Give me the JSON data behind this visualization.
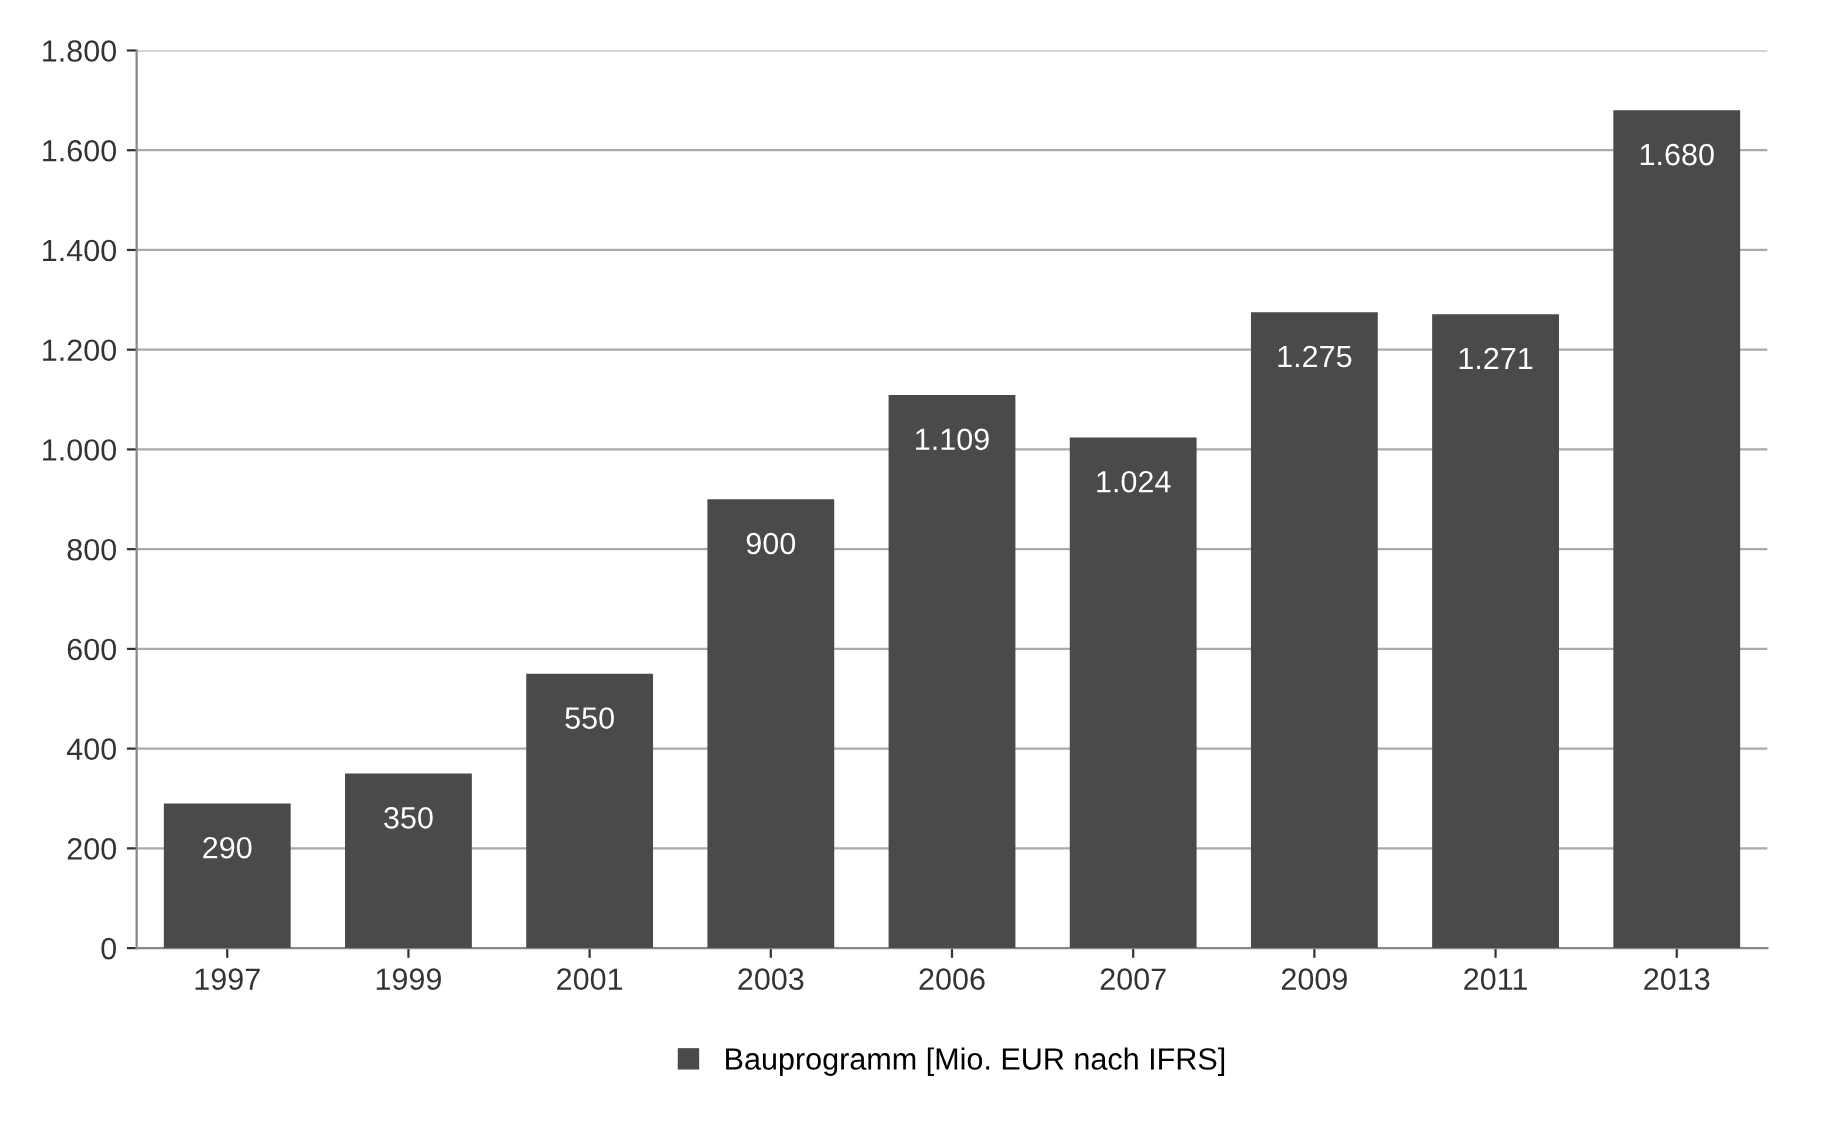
{
  "chart_data": {
    "type": "bar",
    "categories": [
      "1997",
      "1999",
      "2001",
      "2003",
      "2006",
      "2007",
      "2009",
      "2011",
      "2013"
    ],
    "series": [
      {
        "name": "Bauprogramm [Mio. EUR nach IFRS]",
        "color": "#4a4a4a",
        "values": [
          290,
          350,
          550,
          900,
          1109,
          1024,
          1275,
          1271,
          1680
        ],
        "value_labels": [
          "290",
          "350",
          "550",
          "900",
          "1.109",
          "1.024",
          "1.275",
          "1.271",
          "1.680"
        ]
      }
    ],
    "ylim": [
      0,
      1800
    ],
    "yticks": [
      0,
      200,
      400,
      600,
      800,
      {
        "value": 1000,
        "label": "1.000"
      },
      {
        "value": 1200,
        "label": "1.200"
      },
      {
        "value": 1400,
        "label": "1.400"
      },
      {
        "value": 1600,
        "label": "1.600"
      },
      {
        "value": 1800,
        "label": "1.800"
      }
    ],
    "grid": "y",
    "legend": "bottom"
  }
}
